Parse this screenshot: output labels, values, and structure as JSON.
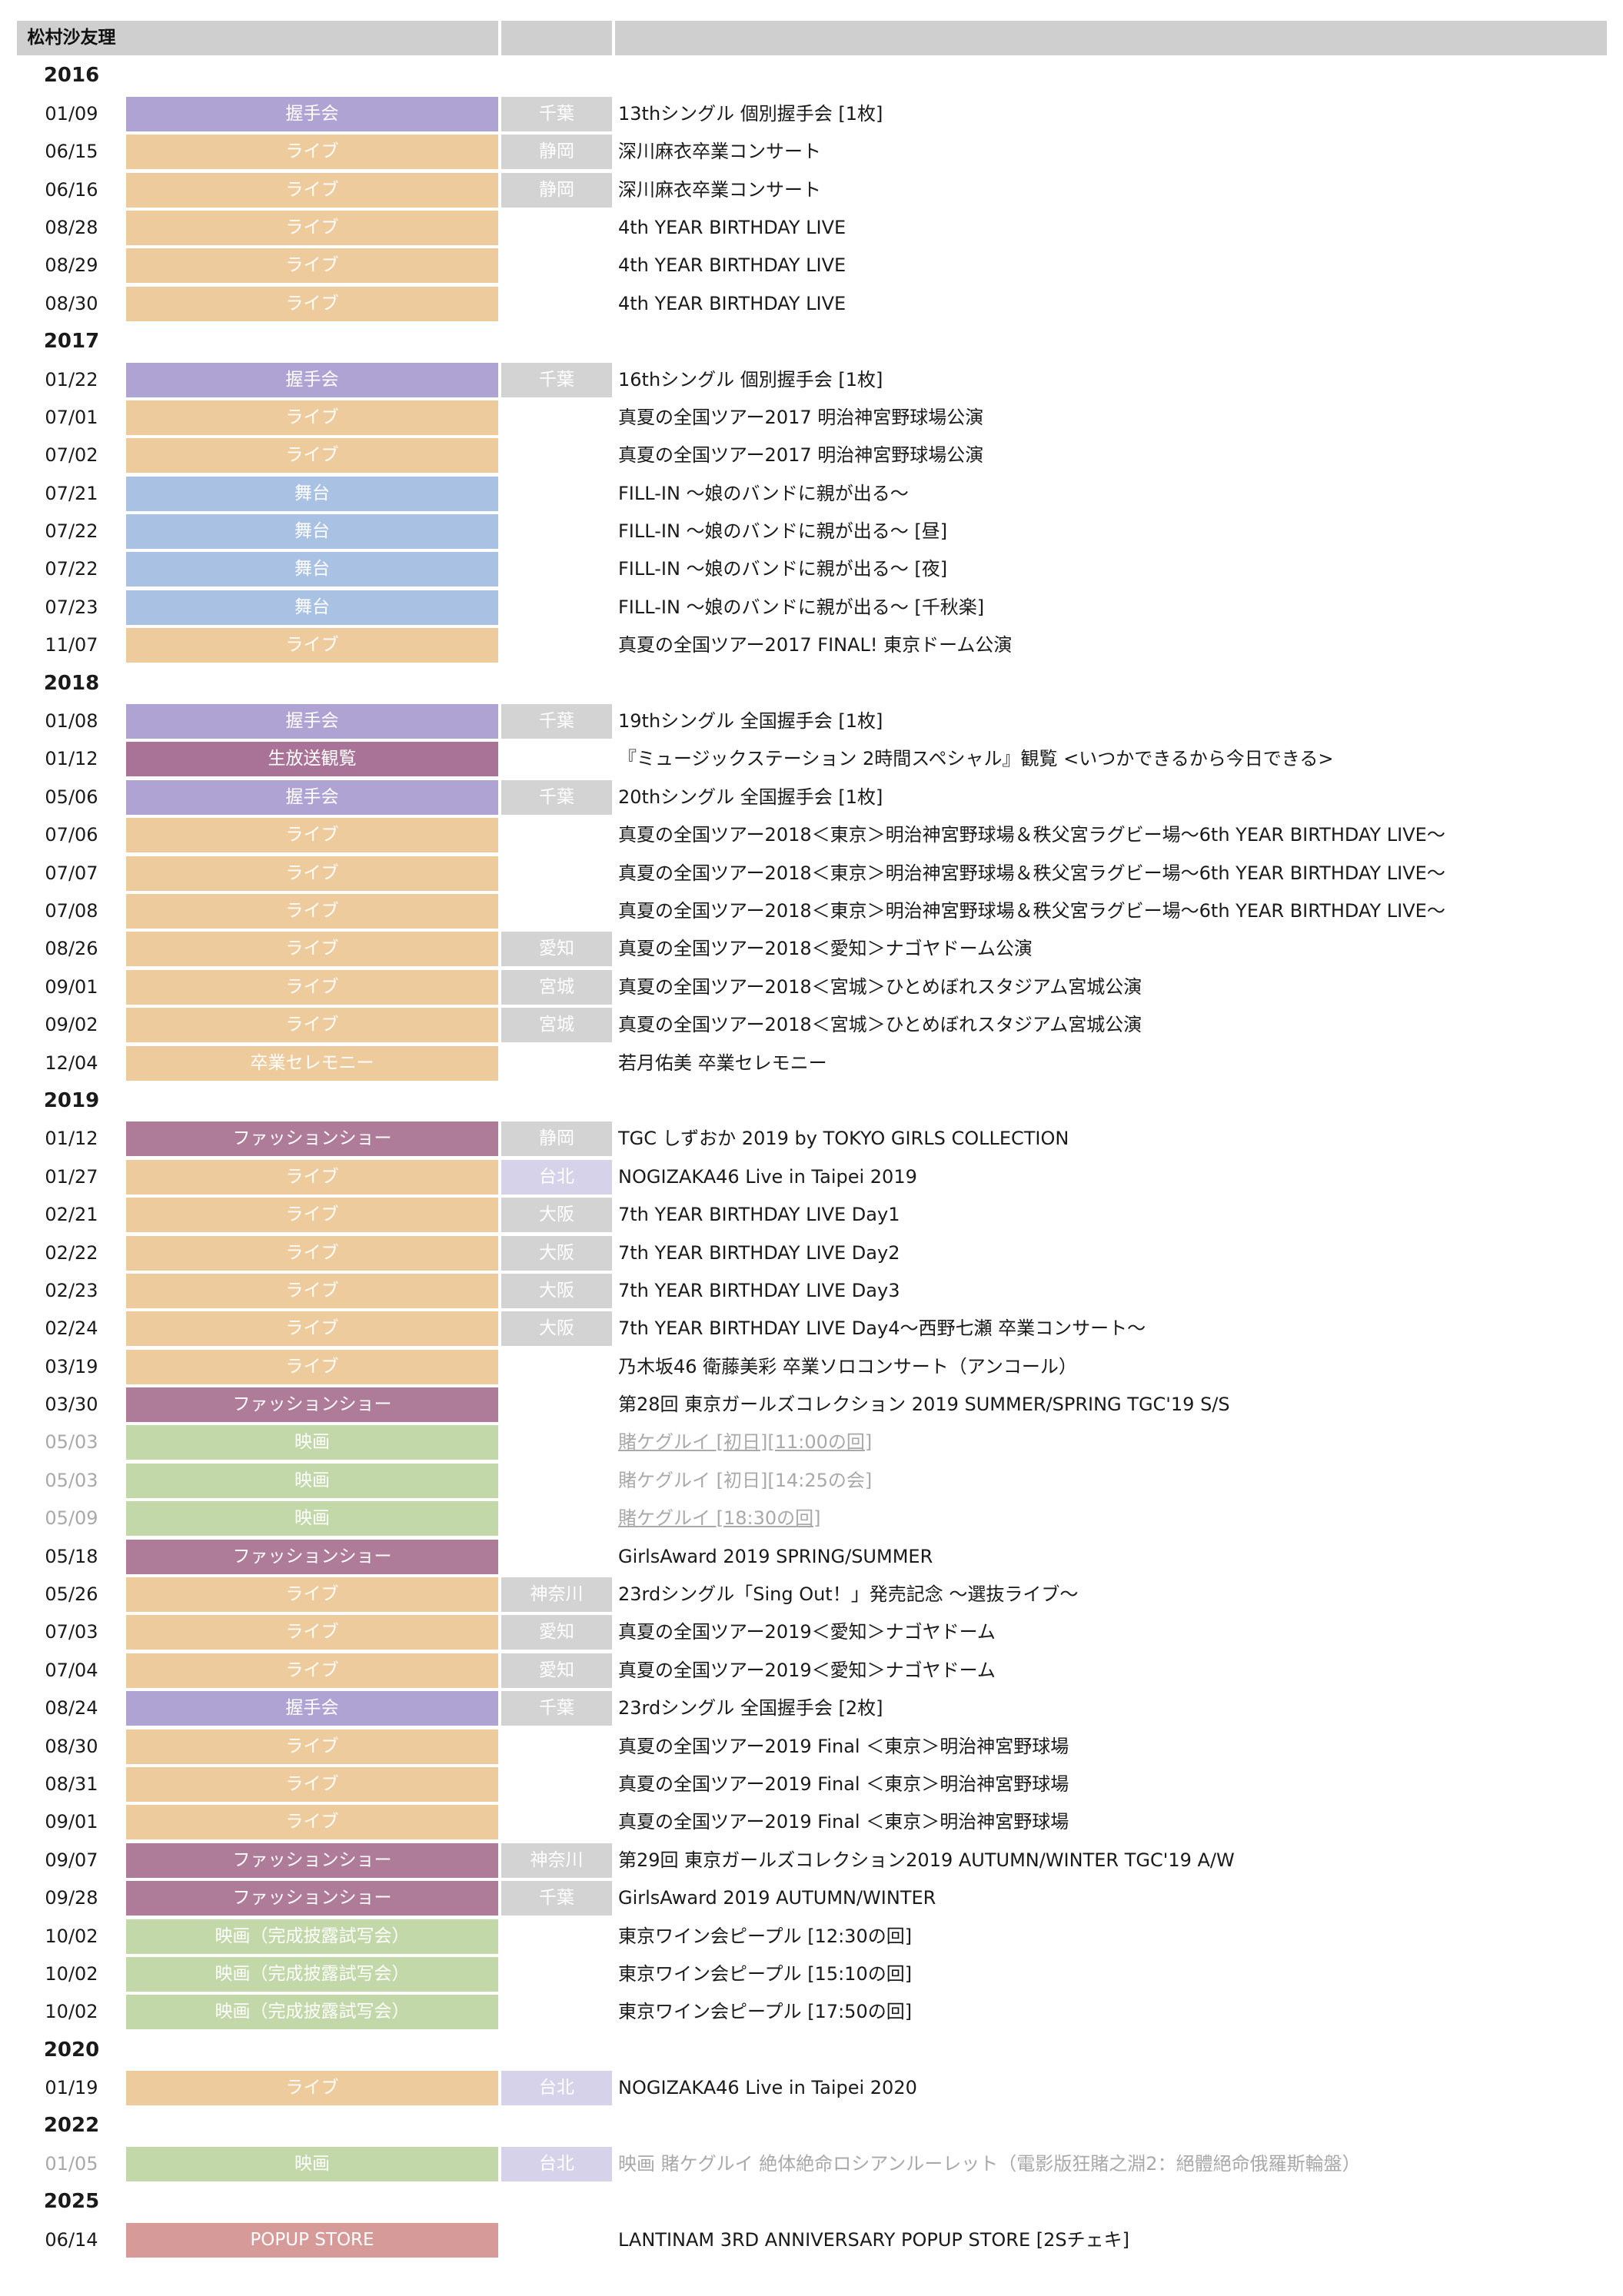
{
  "header": {
    "member": "松村沙友理"
  },
  "colors": {
    "握手会": "#aea3d2",
    "ライブ": "#eecb9c",
    "舞台": "#a9c2e4",
    "生放送観覧": "#a87396",
    "ファッションショー": "#ae7b98",
    "卒業セレモニー": "#eecb9c",
    "映画": "#c2d8a9",
    "映画（完成披露試写会）": "#c2d8a9",
    "POPUP STORE": "#d69a99",
    "pref_default": "#d3d3d3",
    "pref_overseas": "#d5d2e9"
  },
  "rows": [
    {
      "type": "year",
      "label": "2016"
    },
    {
      "date": "01/09",
      "cat": "握手会",
      "pref": "千葉",
      "title": "13thシングル 個別握手会 [1枚]"
    },
    {
      "date": "06/15",
      "cat": "ライブ",
      "pref": "静岡",
      "title": "深川麻衣卒業コンサート"
    },
    {
      "date": "06/16",
      "cat": "ライブ",
      "pref": "静岡",
      "title": "深川麻衣卒業コンサート"
    },
    {
      "date": "08/28",
      "cat": "ライブ",
      "pref": "",
      "title": "4th YEAR BIRTHDAY LIVE"
    },
    {
      "date": "08/29",
      "cat": "ライブ",
      "pref": "",
      "title": "4th YEAR BIRTHDAY LIVE"
    },
    {
      "date": "08/30",
      "cat": "ライブ",
      "pref": "",
      "title": "4th YEAR BIRTHDAY LIVE"
    },
    {
      "type": "year",
      "label": "2017"
    },
    {
      "date": "01/22",
      "cat": "握手会",
      "pref": "千葉",
      "title": "16thシングル 個別握手会 [1枚]"
    },
    {
      "date": "07/01",
      "cat": "ライブ",
      "pref": "",
      "title": "真夏の全国ツアー2017 明治神宮野球場公演"
    },
    {
      "date": "07/02",
      "cat": "ライブ",
      "pref": "",
      "title": "真夏の全国ツアー2017 明治神宮野球場公演"
    },
    {
      "date": "07/21",
      "cat": "舞台",
      "pref": "",
      "title": "FILL-IN 〜娘のバンドに親が出る〜"
    },
    {
      "date": "07/22",
      "cat": "舞台",
      "pref": "",
      "title": "FILL-IN 〜娘のバンドに親が出る〜 [昼]"
    },
    {
      "date": "07/22",
      "cat": "舞台",
      "pref": "",
      "title": "FILL-IN 〜娘のバンドに親が出る〜 [夜]"
    },
    {
      "date": "07/23",
      "cat": "舞台",
      "pref": "",
      "title": "FILL-IN 〜娘のバンドに親が出る〜 [千秋楽]"
    },
    {
      "date": "11/07",
      "cat": "ライブ",
      "pref": "",
      "title": "真夏の全国ツアー2017 FINAL! 東京ドーム公演"
    },
    {
      "type": "year",
      "label": "2018"
    },
    {
      "date": "01/08",
      "cat": "握手会",
      "pref": "千葉",
      "title": "19thシングル 全国握手会 [1枚]"
    },
    {
      "date": "01/12",
      "cat": "生放送観覧",
      "pref": "",
      "title": "『ミュージックステーション 2時間スペシャル』観覧 <いつかできるから今日できる>"
    },
    {
      "date": "05/06",
      "cat": "握手会",
      "pref": "千葉",
      "title": "20thシングル 全国握手会 [1枚]"
    },
    {
      "date": "07/06",
      "cat": "ライブ",
      "pref": "",
      "title": "真夏の全国ツアー2018＜東京＞明治神宮野球場＆秩父宮ラグビー場〜6th YEAR BIRTHDAY LIVE〜"
    },
    {
      "date": "07/07",
      "cat": "ライブ",
      "pref": "",
      "title": "真夏の全国ツアー2018＜東京＞明治神宮野球場＆秩父宮ラグビー場〜6th YEAR BIRTHDAY LIVE〜"
    },
    {
      "date": "07/08",
      "cat": "ライブ",
      "pref": "",
      "title": "真夏の全国ツアー2018＜東京＞明治神宮野球場＆秩父宮ラグビー場〜6th YEAR BIRTHDAY LIVE〜"
    },
    {
      "date": "08/26",
      "cat": "ライブ",
      "pref": "愛知",
      "title": "真夏の全国ツアー2018＜愛知＞ナゴヤドーム公演"
    },
    {
      "date": "09/01",
      "cat": "ライブ",
      "pref": "宮城",
      "title": "真夏の全国ツアー2018＜宮城＞ひとめぼれスタジアム宮城公演"
    },
    {
      "date": "09/02",
      "cat": "ライブ",
      "pref": "宮城",
      "title": "真夏の全国ツアー2018＜宮城＞ひとめぼれスタジアム宮城公演"
    },
    {
      "date": "12/04",
      "cat": "卒業セレモニー",
      "pref": "",
      "title": "若月佑美 卒業セレモニー"
    },
    {
      "type": "year",
      "label": "2019"
    },
    {
      "date": "01/12",
      "cat": "ファッションショー",
      "pref": "静岡",
      "title": "TGC しずおか 2019 by TOKYO GIRLS COLLECTION"
    },
    {
      "date": "01/27",
      "cat": "ライブ",
      "pref": "台北",
      "title": "NOGIZAKA46 Live in Taipei 2019"
    },
    {
      "date": "02/21",
      "cat": "ライブ",
      "pref": "大阪",
      "title": "7th YEAR BIRTHDAY LIVE Day1"
    },
    {
      "date": "02/22",
      "cat": "ライブ",
      "pref": "大阪",
      "title": "7th YEAR BIRTHDAY LIVE Day2"
    },
    {
      "date": "02/23",
      "cat": "ライブ",
      "pref": "大阪",
      "title": "7th YEAR BIRTHDAY LIVE Day3"
    },
    {
      "date": "02/24",
      "cat": "ライブ",
      "pref": "大阪",
      "title": "7th YEAR BIRTHDAY LIVE Day4〜西野七瀬 卒業コンサート〜"
    },
    {
      "date": "03/19",
      "cat": "ライブ",
      "pref": "",
      "title": "乃木坂46 衛藤美彩 卒業ソロコンサート（アンコール）"
    },
    {
      "date": "03/30",
      "cat": "ファッションショー",
      "pref": "",
      "title": "第28回 東京ガールズコレクション 2019 SUMMER/SPRING TGC'19 S/S"
    },
    {
      "date": "05/03",
      "cat": "映画",
      "pref": "",
      "title": "賭ケグルイ [初日][11:00の回]",
      "faded": true,
      "underline": true
    },
    {
      "date": "05/03",
      "cat": "映画",
      "pref": "",
      "title": "賭ケグルイ [初日][14:25の会]",
      "faded": true
    },
    {
      "date": "05/09",
      "cat": "映画",
      "pref": "",
      "title": "賭ケグルイ [18:30の回]",
      "faded": true,
      "underline": true
    },
    {
      "date": "05/18",
      "cat": "ファッションショー",
      "pref": "",
      "title": "GirlsAward 2019 SPRING/SUMMER"
    },
    {
      "date": "05/26",
      "cat": "ライブ",
      "pref": "神奈川",
      "title": "23rdシングル「Sing Out！」発売記念 〜選抜ライブ〜"
    },
    {
      "date": "07/03",
      "cat": "ライブ",
      "pref": "愛知",
      "title": "真夏の全国ツアー2019＜愛知＞ナゴヤドーム"
    },
    {
      "date": "07/04",
      "cat": "ライブ",
      "pref": "愛知",
      "title": "真夏の全国ツアー2019＜愛知＞ナゴヤドーム"
    },
    {
      "date": "08/24",
      "cat": "握手会",
      "pref": "千葉",
      "title": "23rdシングル 全国握手会 [2枚]"
    },
    {
      "date": "08/30",
      "cat": "ライブ",
      "pref": "",
      "title": "真夏の全国ツアー2019 Final ＜東京＞明治神宮野球場"
    },
    {
      "date": "08/31",
      "cat": "ライブ",
      "pref": "",
      "title": "真夏の全国ツアー2019 Final ＜東京＞明治神宮野球場"
    },
    {
      "date": "09/01",
      "cat": "ライブ",
      "pref": "",
      "title": "真夏の全国ツアー2019 Final ＜東京＞明治神宮野球場"
    },
    {
      "date": "09/07",
      "cat": "ファッションショー",
      "pref": "神奈川",
      "title": "第29回 東京ガールズコレクション2019 AUTUMN/WINTER TGC'19 A/W"
    },
    {
      "date": "09/28",
      "cat": "ファッションショー",
      "pref": "千葉",
      "title": "GirlsAward 2019 AUTUMN/WINTER"
    },
    {
      "date": "10/02",
      "cat": "映画（完成披露試写会）",
      "pref": "",
      "title": "東京ワイン会ピープル [12:30の回]"
    },
    {
      "date": "10/02",
      "cat": "映画（完成披露試写会）",
      "pref": "",
      "title": "東京ワイン会ピープル [15:10の回]"
    },
    {
      "date": "10/02",
      "cat": "映画（完成披露試写会）",
      "pref": "",
      "title": "東京ワイン会ピープル [17:50の回]"
    },
    {
      "type": "year",
      "label": "2020"
    },
    {
      "date": "01/19",
      "cat": "ライブ",
      "pref": "台北",
      "title": "NOGIZAKA46 Live in Taipei 2020"
    },
    {
      "type": "year",
      "label": "2022"
    },
    {
      "date": "01/05",
      "cat": "映画",
      "pref": "台北",
      "title": "映画 賭ケグルイ 絶体絶命ロシアンルーレット（電影版狂賭之淵2：絕體絕命俄羅斯輪盤）",
      "faded": true
    },
    {
      "type": "year",
      "label": "2025"
    },
    {
      "date": "06/14",
      "cat": "POPUP STORE",
      "pref": "",
      "title": "LANTINAM 3RD ANNIVERSARY POPUP STORE [2Sチェキ]"
    }
  ]
}
